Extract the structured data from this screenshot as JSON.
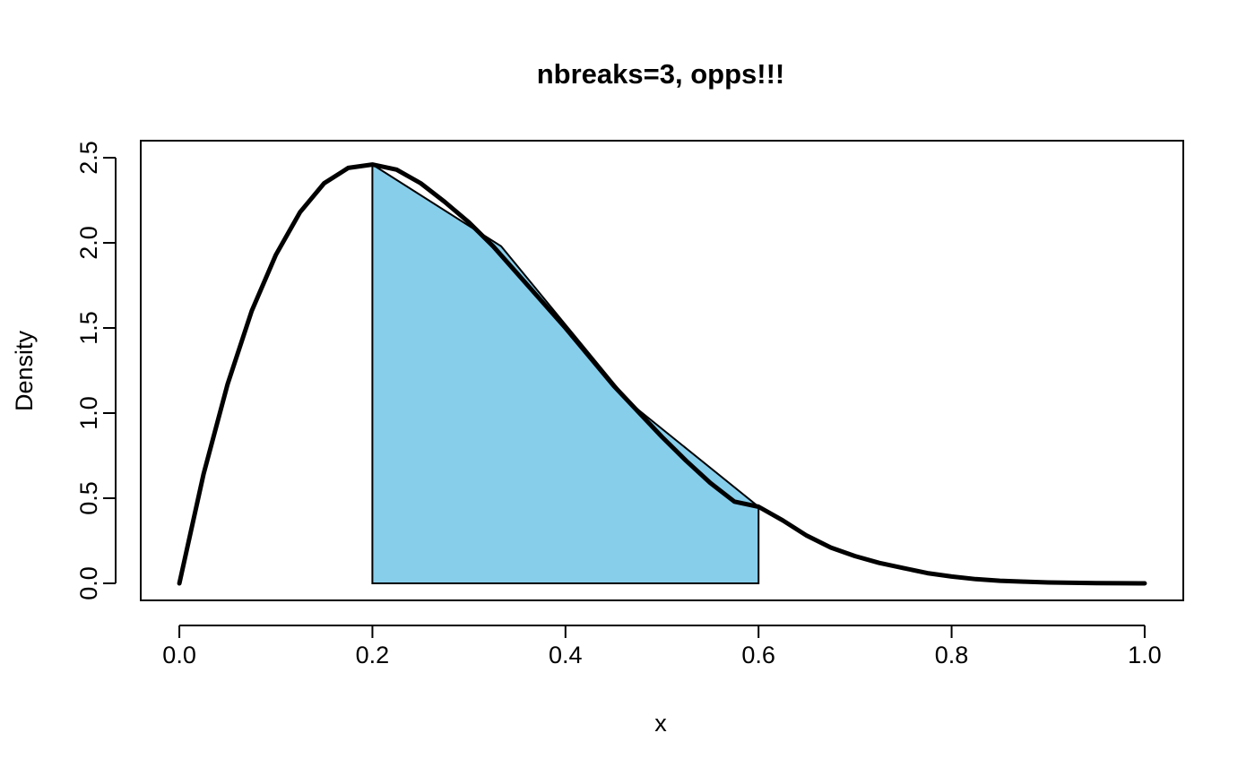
{
  "chart_data": {
    "type": "line",
    "title": "nbreaks=3, opps!!!",
    "xlabel": "x",
    "ylabel": "Density",
    "xlim": [
      -0.04,
      1.04
    ],
    "ylim": [
      -0.1,
      2.6
    ],
    "x_ticks": [
      "0.0",
      "0.2",
      "0.4",
      "0.6",
      "0.8",
      "1.0"
    ],
    "y_ticks": [
      "0.0",
      "0.5",
      "1.0",
      "1.5",
      "2.0",
      "2.5"
    ],
    "grid": false,
    "colors": {
      "fill": "#87CEEB",
      "line": "#000000"
    },
    "series": [
      {
        "x": [
          0.0,
          0.025,
          0.05,
          0.075,
          0.1,
          0.125,
          0.15,
          0.175,
          0.2,
          0.225,
          0.25,
          0.275,
          0.3,
          0.325,
          0.35,
          0.375,
          0.4,
          0.425,
          0.45,
          0.475,
          0.5,
          0.525,
          0.55,
          0.575,
          0.6,
          0.625,
          0.65,
          0.675,
          0.7,
          0.725,
          0.75,
          0.775,
          0.8,
          0.825,
          0.85,
          0.875,
          0.9,
          0.925,
          0.95,
          0.975,
          1.0
        ],
        "y": [
          0.0,
          0.64,
          1.17,
          1.6,
          1.93,
          2.18,
          2.35,
          2.44,
          2.46,
          2.43,
          2.35,
          2.24,
          2.12,
          1.98,
          1.82,
          1.66,
          1.5,
          1.33,
          1.16,
          1.01,
          0.86,
          0.72,
          0.59,
          0.48,
          0.45,
          0.37,
          0.28,
          0.21,
          0.16,
          0.12,
          0.09,
          0.06,
          0.04,
          0.025,
          0.015,
          0.01,
          0.005,
          0.003,
          0.001,
          0.0005,
          0.0
        ]
      }
    ],
    "fill_polygon": {
      "x": [
        0.2,
        0.3333,
        0.4667,
        0.6,
        0.6,
        0.2
      ],
      "y": [
        2.46,
        1.98,
        1.06,
        0.45,
        0.0,
        0.0
      ]
    }
  }
}
